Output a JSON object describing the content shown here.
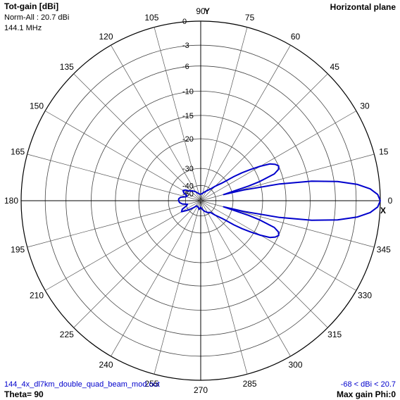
{
  "header": {
    "quantity": "Tot-gain [dBi]",
    "norm": "Norm-All : 20.7 dBi",
    "frequency": "144.1 MHz",
    "plane": "Horizontal plane"
  },
  "footer": {
    "filename": "144_4x_dl7km_double_quad_beam_mod.out",
    "theta": "Theta= 90",
    "range": "-68 < dBi < 20.7",
    "max_gain": "Max gain Phi:0"
  },
  "axes": {
    "y": "Y",
    "x": "X"
  },
  "colors": {
    "trace": "#0000cc",
    "grid": "#000000",
    "background": "#ffffff"
  },
  "chart_data": {
    "type": "polar",
    "title": "Horizontal plane",
    "angle_unit": "deg",
    "angle_ticks": [
      "0",
      "15",
      "30",
      "45",
      "60",
      "75",
      "90",
      "105",
      "120",
      "135",
      "150",
      "165",
      "180",
      "195",
      "210",
      "225",
      "240",
      "255",
      "270",
      "285",
      "300",
      "315",
      "330",
      "345"
    ],
    "radial_ticks": [
      "0",
      "-3",
      "-6",
      "-10",
      "-15",
      "-20",
      "-30",
      "-40",
      "-50"
    ],
    "radial_unit": "dB (normalized)",
    "grid": true,
    "series": [
      {
        "phi": [
          0,
          2,
          4,
          6,
          8,
          10,
          12,
          14,
          15,
          16,
          17,
          18,
          20,
          22,
          24,
          26,
          28,
          30,
          32,
          34,
          36,
          38,
          40,
          45,
          50,
          60,
          70,
          80,
          90,
          100,
          110,
          120,
          130,
          140,
          145,
          150,
          155,
          160,
          165,
          170,
          175,
          180,
          185,
          190,
          195,
          200,
          205,
          210,
          215,
          220,
          225,
          230,
          235,
          240,
          250,
          260,
          270,
          280,
          290,
          300,
          310,
          315,
          320,
          322,
          324,
          326,
          328,
          330,
          332,
          334,
          336,
          338,
          340,
          342,
          343,
          344,
          345,
          346,
          348,
          350,
          352,
          354,
          356,
          358,
          360
        ],
        "gain_db": [
          0,
          -0.3,
          -1.2,
          -2.8,
          -5.5,
          -9.5,
          -16,
          -26,
          -35,
          -30,
          -24,
          -20,
          -16.5,
          -15.3,
          -15,
          -15.5,
          -16.5,
          -18.5,
          -21,
          -24,
          -27,
          -30,
          -33,
          -37,
          -40,
          -45,
          -48,
          -50,
          -52,
          -51,
          -49,
          -46,
          -43,
          -40,
          -38,
          -37,
          -38,
          -41,
          -40,
          -37,
          -36,
          -36,
          -36.5,
          -38,
          -42,
          -40,
          -37,
          -36,
          -39,
          -43,
          -47,
          -50,
          -52,
          -52,
          -50,
          -48,
          -52,
          -48,
          -45,
          -42,
          -40,
          -37,
          -33,
          -30,
          -27,
          -24,
          -21,
          -18.5,
          -16.5,
          -15.5,
          -15,
          -15.3,
          -16.5,
          -20,
          -24,
          -30,
          -35,
          -26,
          -16,
          -9.5,
          -5.5,
          -2.8,
          -1.2,
          -0.3,
          0
        ]
      }
    ]
  }
}
